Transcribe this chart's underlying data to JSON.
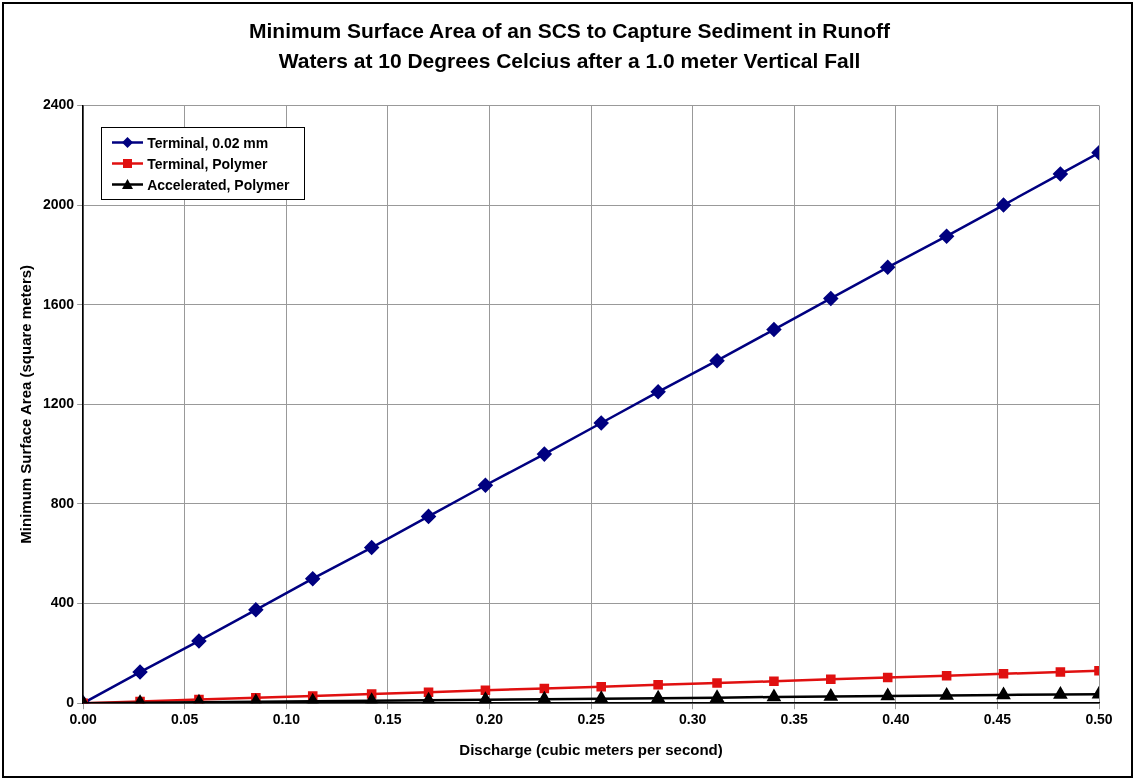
{
  "chart_data": {
    "type": "line",
    "title": "Minimum Surface Area of an SCS to Capture Sediment in Runoff\nWaters at 10 Degrees Celcius after a 1.0 meter Vertical Fall",
    "xlabel": "Discharge (cubic meters per second)",
    "ylabel": "Minimum Surface Area (square meters)",
    "x": [
      0,
      0.028,
      0.057,
      0.085,
      0.113,
      0.142,
      0.17,
      0.198,
      0.227,
      0.255,
      0.283,
      0.312,
      0.34,
      0.368,
      0.396,
      0.425,
      0.453,
      0.481,
      0.5
    ],
    "series": [
      {
        "name": "Terminal, 0.02 mm",
        "color": "#000080",
        "marker": "diamond",
        "values": [
          0,
          125,
          250,
          375,
          500,
          625,
          750,
          875,
          1000,
          1125,
          1250,
          1375,
          1500,
          1625,
          1750,
          1875,
          2000,
          2125,
          2210
        ]
      },
      {
        "name": "Terminal, Polymer",
        "color": "#e01010",
        "marker": "square",
        "values": [
          0,
          7,
          15,
          22,
          29,
          37,
          44,
          52,
          59,
          66,
          74,
          81,
          88,
          96,
          103,
          110,
          118,
          125,
          130
        ]
      },
      {
        "name": "Accelerated, Polymer",
        "color": "#000000",
        "marker": "triangle",
        "values": [
          0,
          2,
          4,
          6,
          8,
          10,
          12,
          14,
          16,
          18,
          20,
          22,
          25,
          27,
          29,
          31,
          33,
          35,
          36
        ]
      }
    ],
    "xlim": [
      0,
      0.5
    ],
    "xticks": [
      {
        "value": 0,
        "label": "0.00"
      },
      {
        "value": 0.05,
        "label": "0.05"
      },
      {
        "value": 0.1,
        "label": "0.10"
      },
      {
        "value": 0.15,
        "label": "0.15"
      },
      {
        "value": 0.2,
        "label": "0.20"
      },
      {
        "value": 0.25,
        "label": "0.25"
      },
      {
        "value": 0.3,
        "label": "0.30"
      },
      {
        "value": 0.35,
        "label": "0.35"
      },
      {
        "value": 0.4,
        "label": "0.40"
      },
      {
        "value": 0.45,
        "label": "0.45"
      },
      {
        "value": 0.5,
        "label": "0.50"
      }
    ],
    "ylim": [
      0,
      2400
    ],
    "yticks": [
      0,
      400,
      800,
      1200,
      1600,
      2000,
      2400
    ],
    "grid": true,
    "legend": "top left",
    "line_style": "solid"
  }
}
